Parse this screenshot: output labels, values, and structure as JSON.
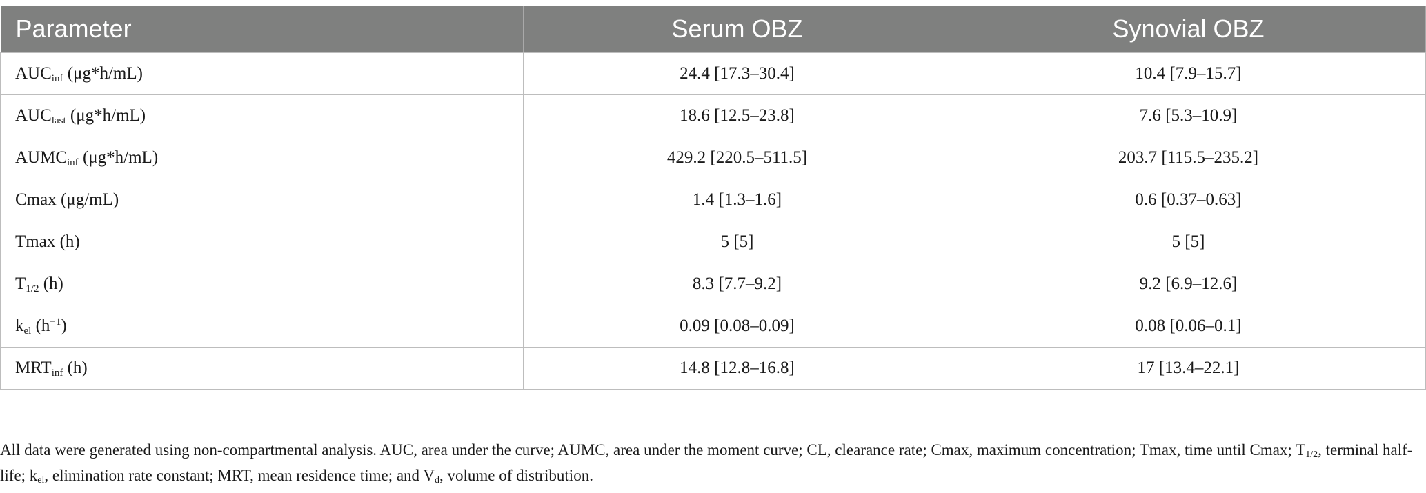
{
  "table": {
    "headers": [
      "Parameter",
      "Serum OBZ",
      "Synovial OBZ"
    ],
    "rows": [
      {
        "param": {
          "base": "AUC",
          "sub": "inf",
          "sup": "",
          "unit": " (μg*h/mL)"
        },
        "serum": "24.4 [17.3–30.4]",
        "synovial": "10.4 [7.9–15.7]"
      },
      {
        "param": {
          "base": "AUC",
          "sub": "last",
          "sup": "",
          "unit": " (μg*h/mL)"
        },
        "serum": "18.6 [12.5–23.8]",
        "synovial": "7.6 [5.3–10.9]"
      },
      {
        "param": {
          "base": "AUMC",
          "sub": "inf",
          "sup": "",
          "unit": " (μg*h/mL)"
        },
        "serum": "429.2 [220.5–511.5]",
        "synovial": "203.7 [115.5–235.2]"
      },
      {
        "param": {
          "base": "Cmax",
          "sub": "",
          "sup": "",
          "unit": " (μg/mL)"
        },
        "serum": "1.4 [1.3–1.6]",
        "synovial": "0.6 [0.37–0.63]"
      },
      {
        "param": {
          "base": "Tmax",
          "sub": "",
          "sup": "",
          "unit": " (h)"
        },
        "serum": "5 [5]",
        "synovial": "5 [5]"
      },
      {
        "param": {
          "base": "T",
          "sub": "1/2",
          "sup": "",
          "unit": " (h)"
        },
        "serum": "8.3 [7.7–9.2]",
        "synovial": "9.2 [6.9–12.6]"
      },
      {
        "param": {
          "base": "k",
          "sub": "el",
          "sup": "",
          "unit": " (h",
          "unit_sup": "−1",
          "unit_close": ")"
        },
        "serum": "0.09 [0.08–0.09]",
        "synovial": "0.08 [0.06–0.1]"
      },
      {
        "param": {
          "base": "MRT",
          "sub": "inf",
          "sup": "",
          "unit": " (h)"
        },
        "serum": "14.8 [12.8–16.8]",
        "synovial": "17 [13.4–22.1]"
      }
    ]
  },
  "footnote": {
    "p1": "All data were generated using non-compartmental analysis. AUC, area under the curve; AUMC, area under the moment curve; CL, clearance rate; Cmax, maximum concentration; Tmax, time until Cmax; T",
    "s1": "1/2",
    "p2": ", terminal half-life; k",
    "s2": "el",
    "p3": ", elimination rate constant; MRT, mean residence time; and V",
    "s3": "d",
    "p4": ", volume of distribution."
  }
}
